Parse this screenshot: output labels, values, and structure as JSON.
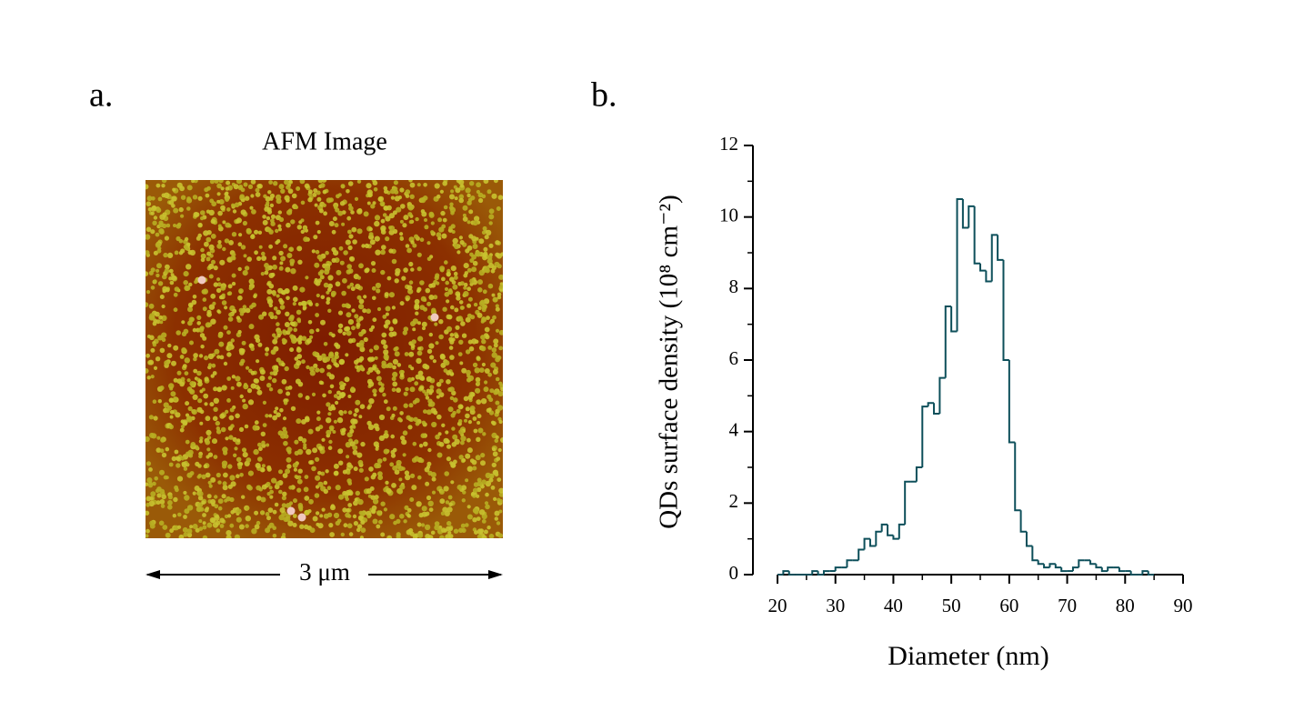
{
  "panels": {
    "a": {
      "label": "a.",
      "title": "AFM Image",
      "scale_label": "3 μm"
    },
    "b": {
      "label": "b."
    }
  },
  "chart_data": {
    "type": "histogram",
    "xlabel": "Diameter (nm)",
    "ylabel": "QDs surface density (10⁸ cm⁻²)",
    "color": "#0d4f5a",
    "bins": [
      20,
      21,
      22,
      23,
      24,
      25,
      26,
      27,
      28,
      29,
      30,
      31,
      32,
      33,
      34,
      35,
      36,
      37,
      38,
      39,
      40,
      41,
      42,
      43,
      44,
      45,
      46,
      47,
      48,
      49,
      50,
      51,
      52,
      53,
      54,
      55,
      56,
      57,
      58,
      59,
      60,
      61,
      62,
      63,
      64,
      65,
      66,
      67,
      68,
      69,
      70,
      71,
      72,
      73,
      74,
      75,
      76,
      77,
      78,
      79,
      80,
      81,
      82,
      83,
      84,
      85
    ],
    "values": [
      0,
      0.1,
      0,
      0,
      0,
      0,
      0.1,
      0,
      0.1,
      0.1,
      0.2,
      0.2,
      0.4,
      0.4,
      0.7,
      1.0,
      0.8,
      1.2,
      1.4,
      1.1,
      1.0,
      1.4,
      2.6,
      2.6,
      3.0,
      4.7,
      4.8,
      4.5,
      5.5,
      7.5,
      6.8,
      10.5,
      9.7,
      10.3,
      8.7,
      8.5,
      8.2,
      9.5,
      8.8,
      6.0,
      3.7,
      1.8,
      1.2,
      0.8,
      0.4,
      0.3,
      0.2,
      0.3,
      0.2,
      0.1,
      0.1,
      0.2,
      0.4,
      0.4,
      0.3,
      0.2,
      0.1,
      0.2,
      0.2,
      0.1,
      0.1,
      0,
      0,
      0.1,
      0
    ],
    "xlim": [
      20,
      90
    ],
    "xticks": [
      20,
      30,
      40,
      50,
      60,
      70,
      80,
      90
    ],
    "ylim": [
      0,
      12
    ],
    "yticks": [
      0,
      2,
      4,
      6,
      8,
      10,
      12
    ]
  }
}
